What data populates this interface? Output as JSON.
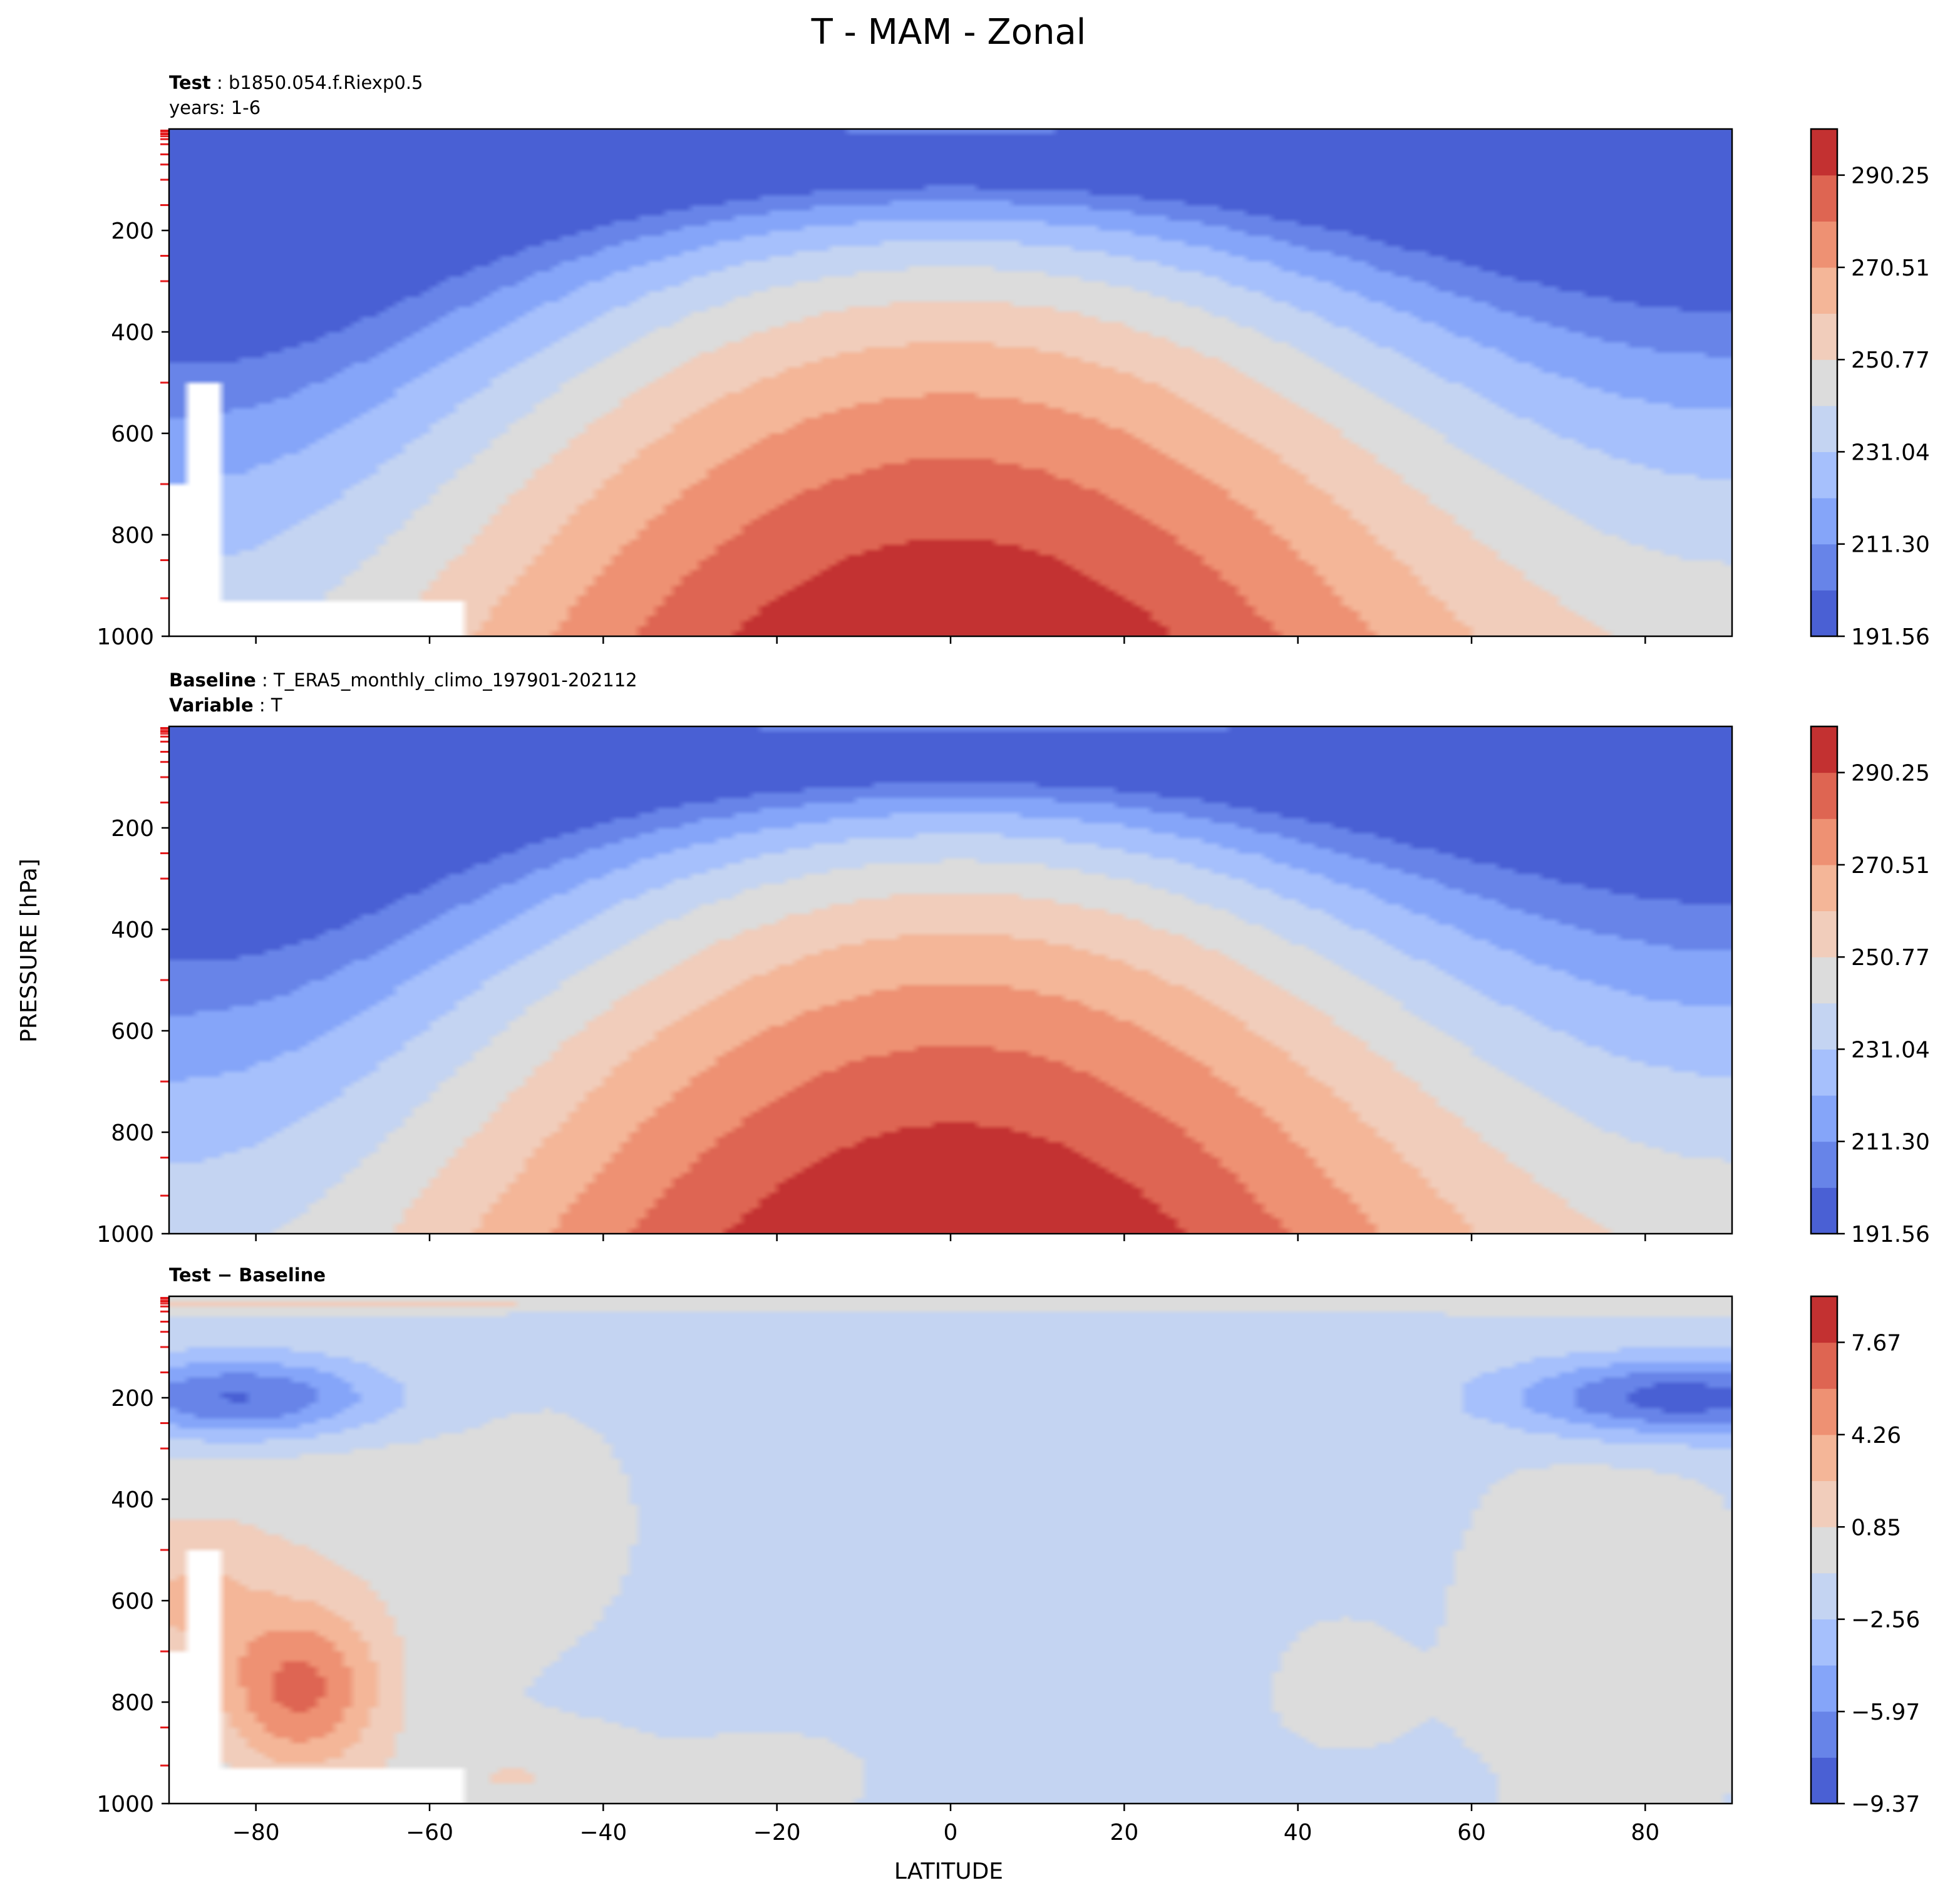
{
  "title": "T - MAM - Zonal",
  "ylabel_shared": "PRESSURE [hPa]",
  "xlabel": "LATITUDE",
  "chart_data": [
    {
      "type": "filled-contour",
      "panel": "test",
      "header": [
        {
          "bold": "Test",
          "sep": " : ",
          "text": "b1850.054.f.Riexp0.5"
        },
        {
          "bold": "",
          "sep": "",
          "text": "years: 1-6"
        }
      ],
      "x": {
        "label": "",
        "range": [
          -90,
          90
        ],
        "ticks": [
          -80,
          -60,
          -40,
          -20,
          0,
          20,
          40,
          60,
          80
        ]
      },
      "y": {
        "label": "",
        "range": [
          1000,
          0
        ],
        "ticks": [
          200,
          400,
          600,
          800,
          1000
        ]
      },
      "colorbar": {
        "min": 191.56,
        "max": 300.12,
        "levels": 11,
        "colormap": "coolwarm",
        "tick_values": [
          191.56,
          211.3,
          231.04,
          250.77,
          270.51,
          290.25
        ],
        "tick_labels": [
          "191.56",
          "211.30",
          "231.04",
          "250.77",
          "270.51",
          "290.25"
        ]
      },
      "missing_boxes": [
        [
          -88,
          -84,
          500,
          700
        ],
        [
          -90,
          -84,
          700,
          930
        ],
        [
          -90,
          -56,
          930,
          1000
        ]
      ],
      "features": {
        "surface_max_lat": 5,
        "surface_max_value": 296,
        "tropopause_min_value": 195
      }
    },
    {
      "type": "filled-contour",
      "panel": "baseline",
      "header": [
        {
          "bold": "Baseline",
          "sep": " : ",
          "text": "T_ERA5_monthly_climo_197901-202112"
        },
        {
          "bold": "Variable",
          "sep": " : ",
          "text": "T"
        }
      ],
      "x": {
        "label": "",
        "range": [
          -90,
          90
        ],
        "ticks": [
          -80,
          -60,
          -40,
          -20,
          0,
          20,
          40,
          60,
          80
        ]
      },
      "y": {
        "label": "",
        "range": [
          1000,
          0
        ],
        "ticks": [
          200,
          400,
          600,
          800,
          1000
        ]
      },
      "colorbar": {
        "min": 191.56,
        "max": 300.12,
        "levels": 11,
        "colormap": "coolwarm",
        "tick_values": [
          191.56,
          211.3,
          231.04,
          250.77,
          270.51,
          290.25
        ],
        "tick_labels": [
          "191.56",
          "211.30",
          "231.04",
          "250.77",
          "270.51",
          "290.25"
        ]
      },
      "missing_boxes": [],
      "features": {
        "surface_max_lat": 5,
        "surface_max_value": 296,
        "tropopause_min_value": 195
      }
    },
    {
      "type": "filled-contour",
      "panel": "difference",
      "header": [
        {
          "bold": "Test − Baseline",
          "sep": "",
          "text": ""
        }
      ],
      "x": {
        "label": "LATITUDE",
        "range": [
          -90,
          90
        ],
        "ticks": [
          -80,
          -60,
          -40,
          -20,
          0,
          20,
          40,
          60,
          80
        ],
        "tick_labels": [
          "−80",
          "−60",
          "−40",
          "−20",
          "0",
          "20",
          "40",
          "60",
          "80"
        ]
      },
      "y": {
        "label": "",
        "range": [
          1000,
          0
        ],
        "ticks": [
          200,
          400,
          600,
          800,
          1000
        ]
      },
      "colorbar": {
        "min": -9.37,
        "max": 9.37,
        "levels": 11,
        "colormap": "coolwarm",
        "tick_values": [
          -9.37,
          -5.97,
          -2.56,
          0.85,
          4.26,
          7.67
        ],
        "tick_labels": [
          "−9.37",
          "−5.97",
          "−2.56",
          "0.85",
          "4.26",
          "7.67"
        ]
      },
      "missing_boxes": [
        [
          -88,
          -84,
          500,
          700
        ],
        [
          -90,
          -84,
          700,
          930
        ],
        [
          -90,
          -56,
          930,
          1000
        ]
      ],
      "features": {
        "antarctic_warm_max": 6.5,
        "upper_level_cold_min": -8.5
      }
    }
  ]
}
